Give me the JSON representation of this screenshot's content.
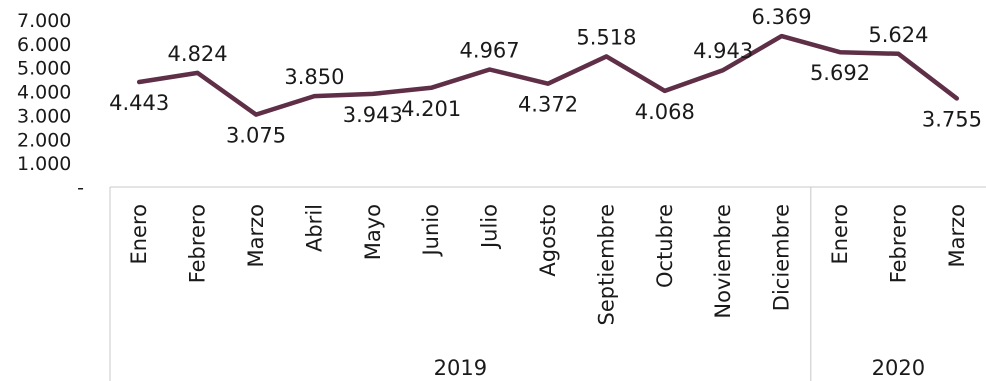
{
  "chart_data": {
    "type": "line",
    "title": "",
    "xlabel": "",
    "ylabel": "",
    "ylim": [
      0,
      7000
    ],
    "yticks": [
      "-",
      "1.000",
      "2.000",
      "3.000",
      "4.000",
      "5.000",
      "6.000",
      "7.000"
    ],
    "grid": false,
    "legend": "none",
    "categories": [
      "Enero",
      "Febrero",
      "Marzo",
      "Abril",
      "Mayo",
      "Junio",
      "Julio",
      "Agosto",
      "Septiembre",
      "Octubre",
      "Noviembre",
      "Diciembre",
      "Enero",
      "Febrero",
      "Marzo"
    ],
    "groups": [
      {
        "label": "2019",
        "count": 12
      },
      {
        "label": "2020",
        "count": 3
      }
    ],
    "series": [
      {
        "values": [
          4443,
          4824,
          3075,
          3850,
          3943,
          4201,
          4967,
          4372,
          5518,
          4068,
          4943,
          6369,
          5692,
          5624,
          3755
        ],
        "labels": [
          "4.443",
          "4.824",
          "3.075",
          "3.850",
          "3.943",
          "4.201",
          "4.967",
          "4.372",
          "5.518",
          "4.068",
          "4.943",
          "6.369",
          "5.692",
          "5.624",
          "3.755"
        ],
        "label_pos": [
          "below",
          "above",
          "below",
          "above",
          "below",
          "below",
          "above",
          "below",
          "above",
          "below",
          "above",
          "above",
          "below",
          "above",
          "below"
        ],
        "color": "#5e2f47"
      }
    ]
  }
}
